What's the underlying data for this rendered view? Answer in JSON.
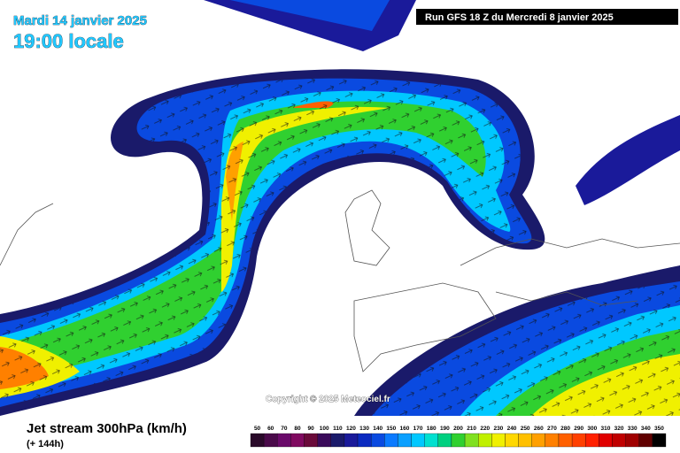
{
  "header": {
    "date": "Mardi 14 janvier 2025",
    "time": "19:00 locale",
    "run": "Run GFS 18 Z du Mercredi 8 janvier 2025"
  },
  "copyright": "Copyright © 2025 Meteociel.fr",
  "legend": {
    "title": "Jet stream 300hPa (km/h)",
    "lead": "(+ 144h)",
    "items": [
      {
        "label": 50,
        "color": "#2a0a2a"
      },
      {
        "label": 60,
        "color": "#4a0a4a"
      },
      {
        "label": 70,
        "color": "#6a0a6a"
      },
      {
        "label": 80,
        "color": "#800a60"
      },
      {
        "label": 90,
        "color": "#6a0a3a"
      },
      {
        "label": 100,
        "color": "#3a0a5a"
      },
      {
        "label": 110,
        "color": "#1a1a6a"
      },
      {
        "label": 120,
        "color": "#1a1a9a"
      },
      {
        "label": 130,
        "color": "#0a2ac0"
      },
      {
        "label": 140,
        "color": "#0a4ae0"
      },
      {
        "label": 150,
        "color": "#0a7aff"
      },
      {
        "label": 160,
        "color": "#0aa0ff"
      },
      {
        "label": 170,
        "color": "#00c8ff"
      },
      {
        "label": 180,
        "color": "#00e0d0"
      },
      {
        "label": 190,
        "color": "#00d080"
      },
      {
        "label": 200,
        "color": "#30d030"
      },
      {
        "label": 210,
        "color": "#80e020"
      },
      {
        "label": 220,
        "color": "#c0f000"
      },
      {
        "label": 230,
        "color": "#f0f000"
      },
      {
        "label": 240,
        "color": "#ffd800"
      },
      {
        "label": 250,
        "color": "#ffc000"
      },
      {
        "label": 260,
        "color": "#ffa000"
      },
      {
        "label": 270,
        "color": "#ff8000"
      },
      {
        "label": 280,
        "color": "#ff6000"
      },
      {
        "label": 290,
        "color": "#ff4000"
      },
      {
        "label": 300,
        "color": "#ff2000"
      },
      {
        "label": 310,
        "color": "#e00000"
      },
      {
        "label": 320,
        "color": "#c00000"
      },
      {
        "label": 330,
        "color": "#a00000"
      },
      {
        "label": 340,
        "color": "#600000"
      },
      {
        "label": 350,
        "color": "#000000"
      }
    ]
  }
}
